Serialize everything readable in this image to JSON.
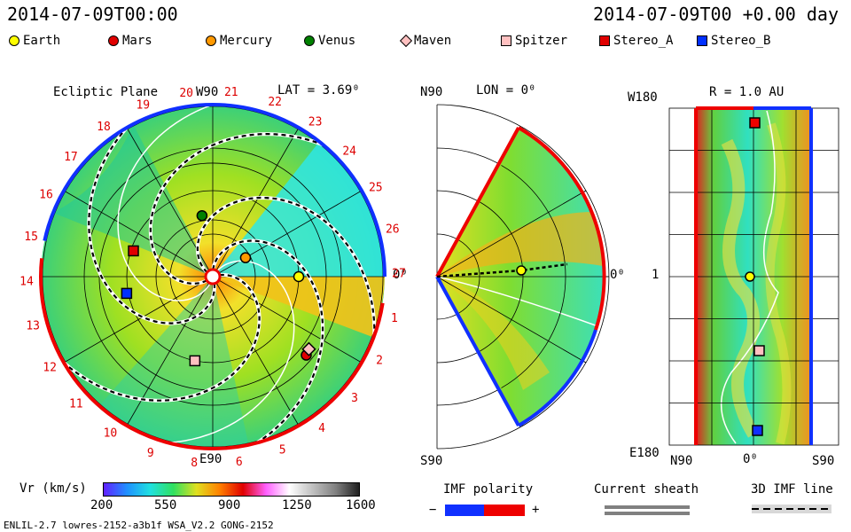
{
  "header": {
    "left_time": "2014-07-09T00:00",
    "right_time": "2014-07-09T00 +0.00 day"
  },
  "legend": [
    {
      "name": "Earth",
      "color": "#ffff00",
      "shape": "circle"
    },
    {
      "name": "Mars",
      "color": "#e00000",
      "shape": "circle"
    },
    {
      "name": "Mercury",
      "color": "#ff9900",
      "shape": "circle"
    },
    {
      "name": "Venus",
      "color": "#008000",
      "shape": "circle"
    },
    {
      "name": "Maven",
      "color": "#ffc0c0",
      "shape": "diamond"
    },
    {
      "name": "Spitzer",
      "color": "#ffc0c0",
      "shape": "square"
    },
    {
      "name": "Stereo_A",
      "color": "#e00000",
      "shape": "square"
    },
    {
      "name": "Stereo_B",
      "color": "#0030ff",
      "shape": "square"
    }
  ],
  "chart_data": [
    {
      "type": "heatmap",
      "title": "Ecliptic Plane",
      "subtitle": "LAT = 3.69⁰",
      "top_label": "W90",
      "bottom_label": "E90",
      "right_label": "0⁰",
      "sector_numbers": [
        "19",
        "20",
        "21",
        "22",
        "23",
        "24",
        "25",
        "26",
        "27",
        "1",
        "2",
        "3",
        "4",
        "5",
        "6",
        "8",
        "9",
        "10",
        "11",
        "12",
        "13",
        "14",
        "15",
        "16",
        "17",
        "18"
      ],
      "objects": [
        {
          "name": "Earth",
          "r_au": 1.0,
          "angle_deg": 0
        },
        {
          "name": "Mercury",
          "r_au": 0.44,
          "angle_deg": 30
        },
        {
          "name": "Venus",
          "r_au": 0.72,
          "angle_deg": 100
        },
        {
          "name": "Mars",
          "r_au": 1.42,
          "angle_deg": -40
        },
        {
          "name": "Maven",
          "r_au": 1.4,
          "angle_deg": -37
        },
        {
          "name": "Spitzer",
          "r_au": 1.0,
          "angle_deg": -102
        },
        {
          "name": "Stereo_A",
          "r_au": 0.97,
          "angle_deg": 162
        },
        {
          "name": "Stereo_B",
          "r_au": 1.02,
          "angle_deg": -169
        }
      ]
    },
    {
      "type": "heatmap",
      "title": "LON = 0⁰",
      "top_label": "N90",
      "bottom_label": "S90",
      "right_label": "0⁰"
    },
    {
      "type": "heatmap",
      "title": "R = 1.0 AU",
      "top_label": "W180",
      "bottom_label": "E180",
      "mid_label": "1",
      "x_labels": [
        "N90",
        "0⁰",
        "S90"
      ]
    }
  ],
  "colorbar": {
    "label": "Vr (km/s)",
    "ticks": [
      "200",
      "550",
      "900",
      "1250",
      "1600"
    ],
    "range": [
      200,
      1600
    ]
  },
  "imf_polarity": {
    "label": "IMF polarity",
    "minus": "−",
    "plus": "+"
  },
  "current_sheath": {
    "label": "Current sheath"
  },
  "imf_line": {
    "label": "3D IMF line"
  },
  "footer": {
    "left": "ENLIL-2.7 lowres-2152-a3b1f WSA_V2.2 GONG-2152"
  }
}
